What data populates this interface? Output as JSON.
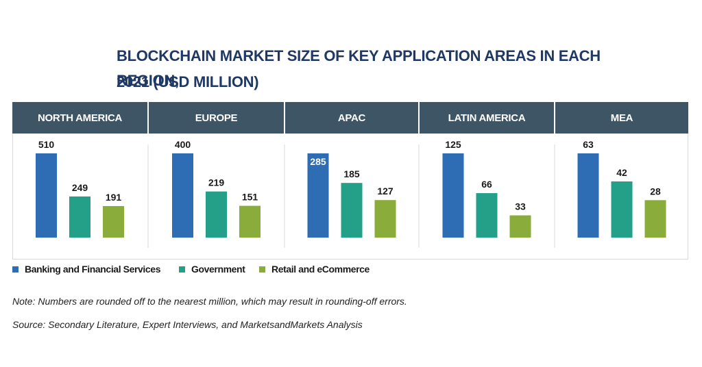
{
  "title_line1": "BLOCKCHAIN MARKET SIZE OF KEY APPLICATION AREAS IN EACH REGION,",
  "title_line2": "2021 (USD MILLION)",
  "note": "Note: Numbers are rounded off to the nearest million, which may result in rounding-off errors.",
  "source": "Source: Secondary Literature, Expert Interviews, and MarketsandMarkets Analysis",
  "colors": {
    "header_bg": "#3d5565",
    "title": "#1f3864",
    "banking": "#2e6db4",
    "government": "#25a088",
    "retail": "#8aac3a"
  },
  "chart_data": {
    "type": "bar",
    "title": "BLOCKCHAIN MARKET SIZE OF KEY APPLICATION AREAS IN EACH REGION, 2021 (USD MILLION)",
    "categories": [
      "NORTH AMERICA",
      "EUROPE",
      "APAC",
      "LATIN AMERICA",
      "MEA"
    ],
    "series": [
      {
        "name": "Banking and Financial Services",
        "color": "#2e6db4",
        "values": [
          510,
          400,
          285,
          125,
          63
        ]
      },
      {
        "name": "Government",
        "color": "#25a088",
        "values": [
          249,
          219,
          185,
          66,
          42
        ]
      },
      {
        "name": "Retail and eCommerce",
        "color": "#8aac3a",
        "values": [
          191,
          151,
          127,
          33,
          28
        ]
      }
    ],
    "independent_scale_per_region": true,
    "legend_position": "bottom-left",
    "grid": false
  }
}
